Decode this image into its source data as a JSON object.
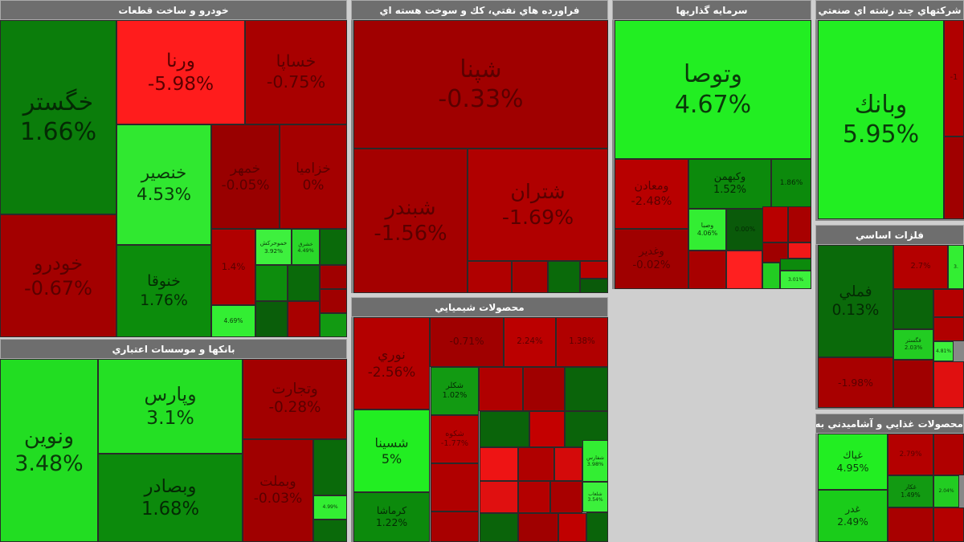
{
  "sectors": [
    {
      "title": "خودرو و ساخت قطعات",
      "tiles": [
        {
          "symbol": "خگستر",
          "change": "1.66%",
          "color": "#0b7d0b"
        },
        {
          "symbol": "خودرو",
          "change": "-0.67%",
          "color": "#a30000"
        },
        {
          "symbol": "ورنا",
          "change": "-5.98%",
          "color": "#ff1c1c"
        },
        {
          "symbol": "خساپا",
          "change": "-0.75%",
          "color": "#a80000"
        },
        {
          "symbol": "خنصير",
          "change": "4.53%",
          "color": "#30e830"
        },
        {
          "symbol": "خنوقا",
          "change": "1.76%",
          "color": "#0c8c0c"
        },
        {
          "symbol": "خمهر",
          "change": "-0.05%",
          "color": "#990000"
        },
        {
          "symbol": "خزامیا",
          "change": "0%",
          "color": "#a40000"
        },
        {
          "symbol": "",
          "change": "1.4%",
          "color": "#b00000"
        },
        {
          "symbol": "خموحركش",
          "change": "3.92%",
          "color": "#3ef03e"
        },
        {
          "symbol": "خشرق",
          "change": "4.49%",
          "color": "#2ad82a"
        },
        {
          "symbol": "",
          "change": "",
          "color": "#0a6a0a"
        },
        {
          "symbol": "",
          "change": "",
          "color": "#0d8d0d"
        },
        {
          "symbol": "",
          "change": "",
          "color": "#0a6a0a"
        },
        {
          "symbol": "",
          "change": "",
          "color": "#a00000"
        },
        {
          "symbol": "",
          "change": "4.69%",
          "color": "#33ee33"
        },
        {
          "symbol": "",
          "change": "",
          "color": "#0a5e0a"
        },
        {
          "symbol": "",
          "change": "",
          "color": "#a80000"
        },
        {
          "symbol": "",
          "change": "",
          "color": "#a00000"
        },
        {
          "symbol": "",
          "change": "",
          "color": "#129a12"
        }
      ]
    },
    {
      "title": "بانكها و موسسات اعتباري",
      "tiles": [
        {
          "symbol": "ونوين",
          "change": "3.48%",
          "color": "#22dd22"
        },
        {
          "symbol": "وپارس",
          "change": "3.1%",
          "color": "#24e024"
        },
        {
          "symbol": "وبصادر",
          "change": "1.68%",
          "color": "#0c8a0c"
        },
        {
          "symbol": "وتجارت",
          "change": "-0.28%",
          "color": "#a20000"
        },
        {
          "symbol": "وبملت",
          "change": "-0.03%",
          "color": "#a00000"
        },
        {
          "symbol": "",
          "change": "",
          "color": "#0a6a0a"
        },
        {
          "symbol": "",
          "change": "4.99%",
          "color": "#33ee33"
        },
        {
          "symbol": "",
          "change": "",
          "color": "#0a6a0a"
        }
      ]
    },
    {
      "title": "فراورده هاي نفتي، كك و سوخت هسته اي",
      "tiles": [
        {
          "symbol": "شپنا",
          "change": "-0.33%",
          "color": "#a00000"
        },
        {
          "symbol": "شبندر",
          "change": "-1.56%",
          "color": "#a40000"
        },
        {
          "symbol": "شتران",
          "change": "-1.69%",
          "color": "#b00000"
        },
        {
          "symbol": "",
          "change": "",
          "color": "#b00000"
        },
        {
          "symbol": "",
          "change": "",
          "color": "#a80000"
        },
        {
          "symbol": "",
          "change": "",
          "color": "#0a6a0a"
        },
        {
          "symbol": "",
          "change": "",
          "color": "#b80000"
        },
        {
          "symbol": "",
          "change": "",
          "color": "#0a5a0a"
        }
      ]
    },
    {
      "title": "محصولات شيميايي",
      "tiles": [
        {
          "symbol": "نوري",
          "change": "-2.56%",
          "color": "#b40000"
        },
        {
          "symbol": "شسينا",
          "change": "5%",
          "color": "#22ee22"
        },
        {
          "symbol": "كرماشا",
          "change": "1.22%",
          "color": "#0c8a0c"
        },
        {
          "symbol": "",
          "change": "-0.71%",
          "color": "#a00000"
        },
        {
          "symbol": "",
          "change": "2.24%",
          "color": "#bb0000"
        },
        {
          "symbol": "",
          "change": "1.38%",
          "color": "#b00000"
        },
        {
          "symbol": "شكلر",
          "change": "1.02%",
          "color": "#129a12"
        },
        {
          "symbol": "",
          "change": "",
          "color": "#b00000"
        },
        {
          "symbol": "",
          "change": "",
          "color": "#a00000"
        },
        {
          "symbol": "",
          "change": "",
          "color": "#0a640a"
        },
        {
          "symbol": "شكوه",
          "change": "-1.77%",
          "color": "#b80000"
        },
        {
          "symbol": "",
          "change": "",
          "color": "#0a640a"
        },
        {
          "symbol": "",
          "change": "",
          "color": "#c40000"
        },
        {
          "symbol": "",
          "change": "",
          "color": "#0a640a"
        },
        {
          "symbol": "",
          "change": "",
          "color": "#ee1414"
        },
        {
          "symbol": "",
          "change": "",
          "color": "#b00000"
        },
        {
          "symbol": "",
          "change": "",
          "color": "#d40a0a"
        },
        {
          "symbol": "شفارس",
          "change": "3.98%",
          "color": "#33ee33"
        },
        {
          "symbol": "",
          "change": "",
          "color": "#b00000"
        },
        {
          "symbol": "",
          "change": "",
          "color": "#e01010"
        },
        {
          "symbol": "",
          "change": "",
          "color": "#b40000"
        },
        {
          "symbol": "",
          "change": "",
          "color": "#a80000"
        },
        {
          "symbol": "شلعاب",
          "change": "3.54%",
          "color": "#3cf03c"
        },
        {
          "symbol": "",
          "change": "",
          "color": "#a80000"
        },
        {
          "symbol": "",
          "change": "",
          "color": "#0a640a"
        },
        {
          "symbol": "",
          "change": "",
          "color": "#a00000"
        },
        {
          "symbol": "",
          "change": "",
          "color": "#c00000"
        },
        {
          "symbol": "",
          "change": "",
          "color": "#0a640a"
        }
      ]
    },
    {
      "title": "سرمايه گذاريها",
      "tiles": [
        {
          "symbol": "وتوصا",
          "change": "4.67%",
          "color": "#22ee22"
        },
        {
          "symbol": "ومعادن",
          "change": "-2.48%",
          "color": "#b80000"
        },
        {
          "symbol": "وغدير",
          "change": "-0.02%",
          "color": "#a00000"
        },
        {
          "symbol": "وكبهمن",
          "change": "1.52%",
          "color": "#0c8a0c"
        },
        {
          "symbol": "",
          "change": "1.86%",
          "color": "#0c8a0c"
        },
        {
          "symbol": "وصبا",
          "change": "4.06%",
          "color": "#33ee33"
        },
        {
          "symbol": "",
          "change": "0.00%",
          "color": "#0a5a0a"
        },
        {
          "symbol": "",
          "change": "",
          "color": "#a80000"
        },
        {
          "symbol": "",
          "change": "",
          "color": "#ff2020"
        },
        {
          "symbol": "",
          "change": "",
          "color": "#b80000"
        },
        {
          "symbol": "",
          "change": "",
          "color": "#a80000"
        },
        {
          "symbol": "",
          "change": "",
          "color": "#a00000"
        },
        {
          "symbol": "",
          "change": "",
          "color": "#f01818"
        },
        {
          "symbol": "",
          "change": "",
          "color": "#22cc22"
        },
        {
          "symbol": "",
          "change": "",
          "color": "#0c8a0c"
        },
        {
          "symbol": "",
          "change": "3.01%",
          "color": "#3cf03c"
        }
      ]
    },
    {
      "title": "شركتهاي چند رشته اي صنعتي",
      "tiles": [
        {
          "symbol": "وبانك",
          "change": "5.95%",
          "color": "#22ee22"
        },
        {
          "symbol": "",
          "change": "-1",
          "color": "#b00000"
        },
        {
          "symbol": "",
          "change": "",
          "color": "#a00000"
        }
      ]
    },
    {
      "title": "فلزات اساسي",
      "tiles": [
        {
          "symbol": "فملي",
          "change": "0.13%",
          "color": "#0a6a0a"
        },
        {
          "symbol": "",
          "change": "-1.98%",
          "color": "#a80000"
        },
        {
          "symbol": "",
          "change": "2.7%",
          "color": "#b40000"
        },
        {
          "symbol": "",
          "change": "3.",
          "color": "#33ee33"
        },
        {
          "symbol": "",
          "change": "",
          "color": "#0a640a"
        },
        {
          "symbol": "فگستر",
          "change": "2.03%",
          "color": "#22cc22"
        },
        {
          "symbol": "",
          "change": "",
          "color": "#b40000"
        },
        {
          "symbol": "",
          "change": "",
          "color": "#b00000"
        },
        {
          "symbol": "",
          "change": "4.81%",
          "color": "#3cf03c"
        },
        {
          "symbol": "",
          "change": "",
          "color": "#a00000"
        },
        {
          "symbol": "",
          "change": "",
          "color": "#e01010"
        }
      ]
    },
    {
      "title": "محصولات غذايي و آشاميدني به جز قند و شكر",
      "tiles": [
        {
          "symbol": "غپاك",
          "change": "4.95%",
          "color": "#22ee22"
        },
        {
          "symbol": "غدر",
          "change": "2.49%",
          "color": "#1acc1a"
        },
        {
          "symbol": "",
          "change": "2.79%",
          "color": "#b40000"
        },
        {
          "symbol": "",
          "change": "",
          "color": "#b00000"
        },
        {
          "symbol": "غكار",
          "change": "1.49%",
          "color": "#129a12"
        },
        {
          "symbol": "",
          "change": "2.04%",
          "color": "#22cc22"
        },
        {
          "symbol": "",
          "change": "",
          "color": "#a80000"
        },
        {
          "symbol": "",
          "change": "",
          "color": "#b40000"
        }
      ]
    }
  ]
}
